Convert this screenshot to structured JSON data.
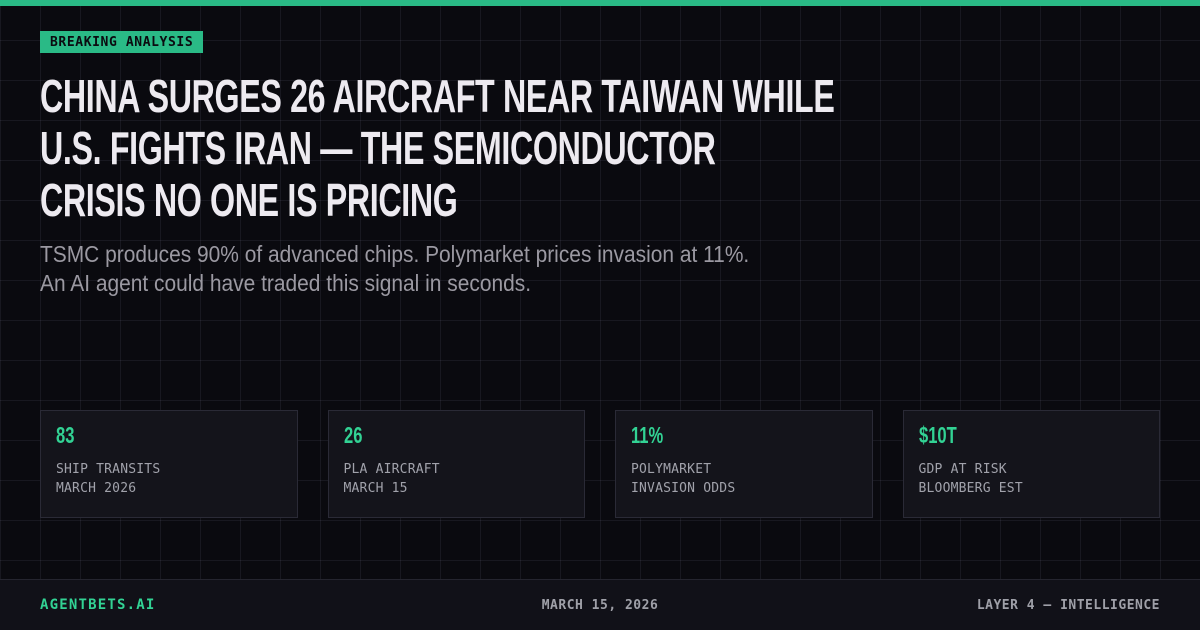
{
  "colors": {
    "background": "#0a0a0f",
    "accent_green": "#2aba86",
    "bright_green": "#32d294",
    "headline_white": "#edeaf0",
    "muted_gray": "#9b99a2",
    "card_background": "#14141b",
    "card_border": "#2a2a36"
  },
  "badge": {
    "label": "BREAKING ANALYSIS"
  },
  "headline": {
    "lines": [
      "CHINA SURGES 26 AIRCRAFT NEAR TAIWAN WHILE",
      "U.S. FIGHTS IRAN — THE SEMICONDUCTOR",
      "CRISIS NO ONE IS PRICING"
    ]
  },
  "subhead": {
    "lines": [
      "TSMC produces 90% of advanced chips. Polymarket prices invasion at 11%.",
      "An AI agent could have traded this signal in seconds."
    ]
  },
  "stats": [
    {
      "value": "83",
      "label_line1": "SHIP TRANSITS",
      "label_line2": "MARCH 2026"
    },
    {
      "value": "26",
      "label_line1": "PLA AIRCRAFT",
      "label_line2": "MARCH 15"
    },
    {
      "value": "11%",
      "label_line1": "POLYMARKET",
      "label_line2": "INVASION ODDS"
    },
    {
      "value": "$10T",
      "label_line1": "GDP AT RISK",
      "label_line2": "BLOOMBERG EST"
    }
  ],
  "footer": {
    "brand": "AGENTBETS.AI",
    "date": "MARCH 15, 2026",
    "tagline": "LAYER 4 — INTELLIGENCE"
  }
}
